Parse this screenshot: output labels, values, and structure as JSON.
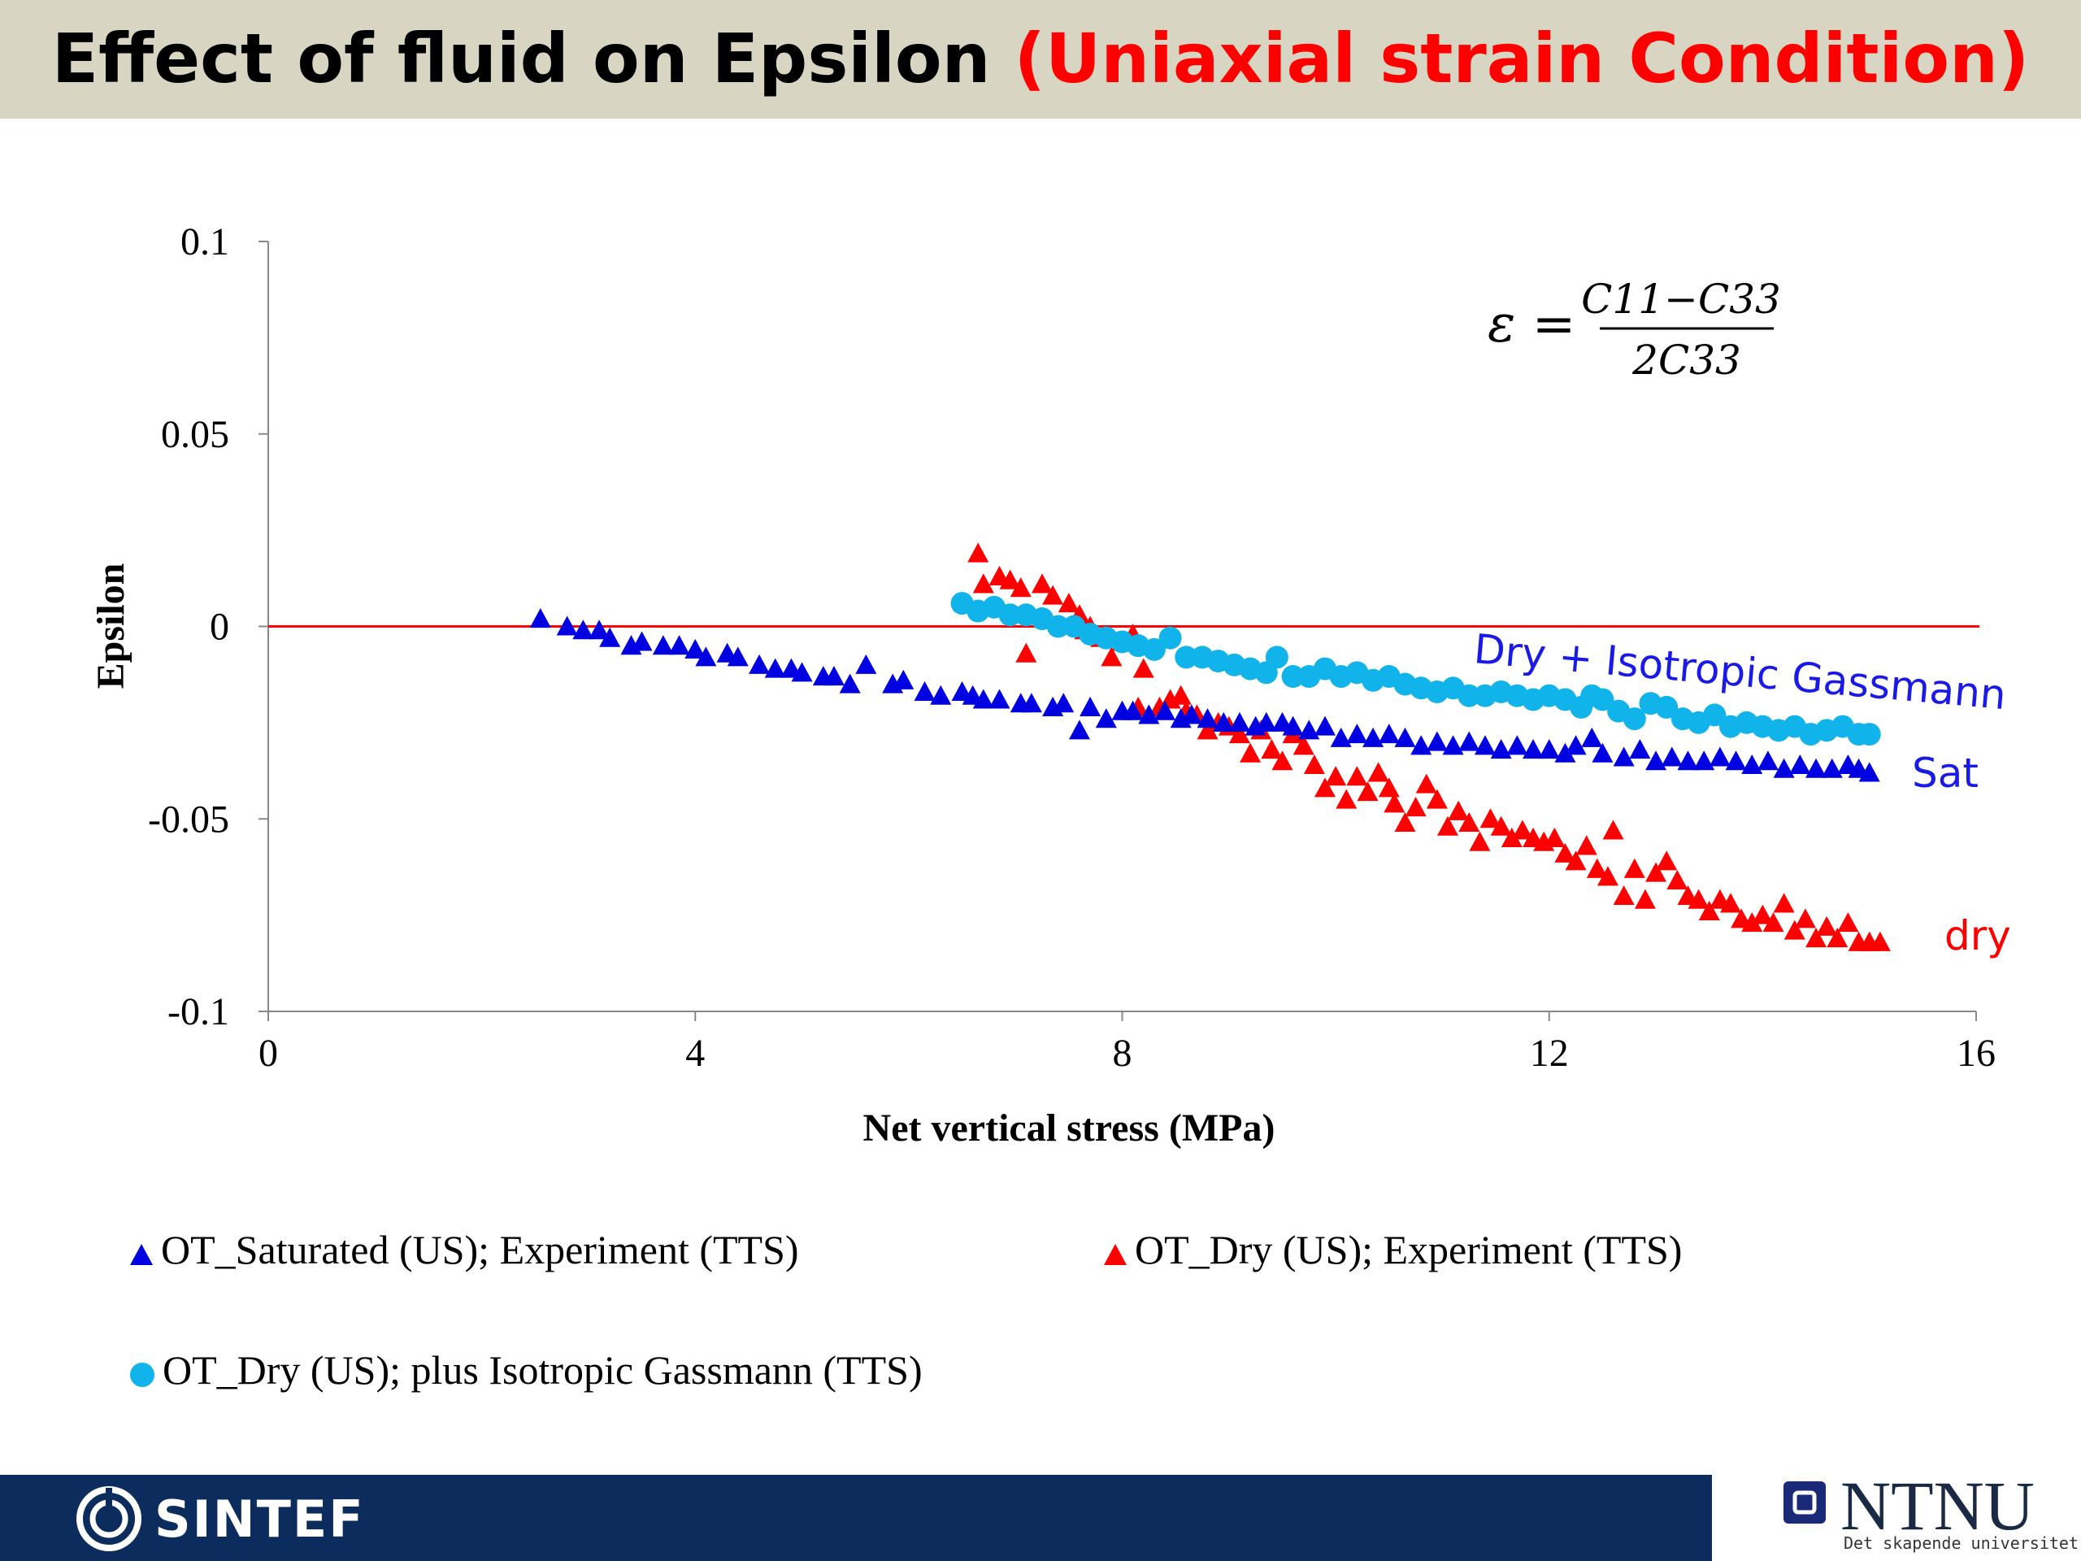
{
  "slide": {
    "title_part1": "Effect of fluid on Epsilon ",
    "title_part2": "(Uniaxial strain Condition)"
  },
  "colors": {
    "saturated": "#0000e0",
    "dry": "#ff0000",
    "gassmann": "#10b4ea",
    "zero_line": "#ff0000",
    "header_bg": "#d8d6c2",
    "footer_bg": "#0d2c5e"
  },
  "formula": {
    "lhs": "ε =",
    "numerator": "C11−C33",
    "denominator": "2C33"
  },
  "annotations": {
    "gassmann_label": "Dry + Isotropic Gassmann",
    "sat_label": "Sat",
    "dry_label": "dry"
  },
  "legend": {
    "item1": "OT_Saturated (US); Experiment (TTS)",
    "item2": "OT_Dry (US); Experiment (TTS)",
    "item3": "OT_Dry (US); plus Isotropic Gassmann (TTS)"
  },
  "footer": {
    "left_logo": "SINTEF",
    "right_logo": "NTNU",
    "tagline": "Det skapende universitet"
  },
  "chart_data": {
    "type": "scatter",
    "xlabel": "Net vertical stress (MPa)",
    "ylabel": "Epsilon",
    "xlim": [
      0,
      16
    ],
    "ylim": [
      -0.1,
      0.1
    ],
    "xticks": [
      0,
      4,
      8,
      12,
      16
    ],
    "yticks": [
      0.1,
      0.05,
      0,
      -0.05,
      -0.1
    ],
    "ytick_labels": [
      "0.1",
      "0.05",
      "0",
      "-0.05",
      "-0.1"
    ],
    "reference_line_y": 0,
    "series": [
      {
        "name": "OT_Saturated (US); Experiment (TTS)",
        "marker": "triangle",
        "color": "#0000e0",
        "points": [
          [
            2.55,
            0.002
          ],
          [
            2.8,
            0.0
          ],
          [
            2.95,
            -0.001
          ],
          [
            3.1,
            -0.001
          ],
          [
            3.2,
            -0.003
          ],
          [
            3.4,
            -0.005
          ],
          [
            3.5,
            -0.004
          ],
          [
            3.7,
            -0.005
          ],
          [
            3.85,
            -0.005
          ],
          [
            4.0,
            -0.006
          ],
          [
            4.1,
            -0.008
          ],
          [
            4.3,
            -0.007
          ],
          [
            4.4,
            -0.008
          ],
          [
            4.6,
            -0.01
          ],
          [
            4.75,
            -0.011
          ],
          [
            4.9,
            -0.011
          ],
          [
            5.0,
            -0.012
          ],
          [
            5.2,
            -0.013
          ],
          [
            5.3,
            -0.013
          ],
          [
            5.45,
            -0.015
          ],
          [
            5.6,
            -0.01
          ],
          [
            5.85,
            -0.015
          ],
          [
            5.95,
            -0.014
          ],
          [
            6.15,
            -0.017
          ],
          [
            6.3,
            -0.018
          ],
          [
            6.5,
            -0.017
          ],
          [
            6.6,
            -0.018
          ],
          [
            6.7,
            -0.019
          ],
          [
            6.85,
            -0.019
          ],
          [
            7.05,
            -0.02
          ],
          [
            7.15,
            -0.02
          ],
          [
            7.35,
            -0.021
          ],
          [
            7.45,
            -0.02
          ],
          [
            7.6,
            -0.027
          ],
          [
            7.7,
            -0.021
          ],
          [
            7.85,
            -0.024
          ],
          [
            8.0,
            -0.022
          ],
          [
            8.1,
            -0.022
          ],
          [
            8.25,
            -0.023
          ],
          [
            8.4,
            -0.022
          ],
          [
            8.55,
            -0.024
          ],
          [
            8.65,
            -0.023
          ],
          [
            8.8,
            -0.024
          ],
          [
            8.95,
            -0.025
          ],
          [
            9.1,
            -0.025
          ],
          [
            9.25,
            -0.026
          ],
          [
            9.35,
            -0.025
          ],
          [
            9.5,
            -0.025
          ],
          [
            9.6,
            -0.026
          ],
          [
            9.75,
            -0.027
          ],
          [
            9.9,
            -0.026
          ],
          [
            10.05,
            -0.029
          ],
          [
            10.2,
            -0.028
          ],
          [
            10.35,
            -0.029
          ],
          [
            10.5,
            -0.028
          ],
          [
            10.65,
            -0.029
          ],
          [
            10.8,
            -0.031
          ],
          [
            10.95,
            -0.03
          ],
          [
            11.1,
            -0.031
          ],
          [
            11.25,
            -0.03
          ],
          [
            11.4,
            -0.031
          ],
          [
            11.55,
            -0.032
          ],
          [
            11.7,
            -0.031
          ],
          [
            11.85,
            -0.032
          ],
          [
            12.0,
            -0.032
          ],
          [
            12.15,
            -0.033
          ],
          [
            12.25,
            -0.031
          ],
          [
            12.4,
            -0.029
          ],
          [
            12.5,
            -0.033
          ],
          [
            12.7,
            -0.034
          ],
          [
            12.85,
            -0.032
          ],
          [
            13.0,
            -0.035
          ],
          [
            13.15,
            -0.034
          ],
          [
            13.3,
            -0.035
          ],
          [
            13.45,
            -0.035
          ],
          [
            13.6,
            -0.034
          ],
          [
            13.75,
            -0.035
          ],
          [
            13.9,
            -0.036
          ],
          [
            14.05,
            -0.035
          ],
          [
            14.2,
            -0.037
          ],
          [
            14.35,
            -0.036
          ],
          [
            14.5,
            -0.037
          ],
          [
            14.65,
            -0.037
          ],
          [
            14.8,
            -0.036
          ],
          [
            14.9,
            -0.037
          ],
          [
            15.0,
            -0.038
          ]
        ]
      },
      {
        "name": "OT_Dry (US); Experiment (TTS)",
        "marker": "triangle",
        "color": "#ff0000",
        "points": [
          [
            6.65,
            0.019
          ],
          [
            6.7,
            0.011
          ],
          [
            6.85,
            0.013
          ],
          [
            6.95,
            0.012
          ],
          [
            7.05,
            0.01
          ],
          [
            7.1,
            -0.007
          ],
          [
            7.25,
            0.011
          ],
          [
            7.35,
            0.008
          ],
          [
            7.5,
            0.006
          ],
          [
            7.6,
            0.003
          ],
          [
            7.65,
            -0.001
          ],
          [
            7.7,
            0.0
          ],
          [
            7.8,
            -0.003
          ],
          [
            7.9,
            -0.008
          ],
          [
            8.0,
            -0.004
          ],
          [
            8.1,
            -0.002
          ],
          [
            8.15,
            -0.021
          ],
          [
            8.2,
            -0.011
          ],
          [
            8.35,
            -0.021
          ],
          [
            8.45,
            -0.019
          ],
          [
            8.55,
            -0.018
          ],
          [
            8.6,
            -0.022
          ],
          [
            8.7,
            -0.023
          ],
          [
            8.8,
            -0.027
          ],
          [
            8.9,
            -0.025
          ],
          [
            9.0,
            -0.026
          ],
          [
            9.1,
            -0.028
          ],
          [
            9.2,
            -0.033
          ],
          [
            9.3,
            -0.027
          ],
          [
            9.4,
            -0.032
          ],
          [
            9.5,
            -0.035
          ],
          [
            9.6,
            -0.028
          ],
          [
            9.7,
            -0.031
          ],
          [
            9.8,
            -0.036
          ],
          [
            9.9,
            -0.042
          ],
          [
            10.0,
            -0.039
          ],
          [
            10.1,
            -0.045
          ],
          [
            10.2,
            -0.039
          ],
          [
            10.3,
            -0.043
          ],
          [
            10.4,
            -0.038
          ],
          [
            10.5,
            -0.042
          ],
          [
            10.55,
            -0.046
          ],
          [
            10.65,
            -0.051
          ],
          [
            10.75,
            -0.047
          ],
          [
            10.85,
            -0.041
          ],
          [
            10.95,
            -0.045
          ],
          [
            11.05,
            -0.052
          ],
          [
            11.15,
            -0.048
          ],
          [
            11.25,
            -0.051
          ],
          [
            11.35,
            -0.056
          ],
          [
            11.45,
            -0.05
          ],
          [
            11.55,
            -0.052
          ],
          [
            11.65,
            -0.055
          ],
          [
            11.75,
            -0.053
          ],
          [
            11.85,
            -0.055
          ],
          [
            11.95,
            -0.056
          ],
          [
            12.05,
            -0.055
          ],
          [
            12.15,
            -0.059
          ],
          [
            12.25,
            -0.061
          ],
          [
            12.35,
            -0.057
          ],
          [
            12.45,
            -0.063
          ],
          [
            12.55,
            -0.065
          ],
          [
            12.6,
            -0.053
          ],
          [
            12.7,
            -0.07
          ],
          [
            12.8,
            -0.063
          ],
          [
            12.9,
            -0.071
          ],
          [
            13.0,
            -0.064
          ],
          [
            13.1,
            -0.061
          ],
          [
            13.2,
            -0.066
          ],
          [
            13.3,
            -0.07
          ],
          [
            13.4,
            -0.071
          ],
          [
            13.5,
            -0.074
          ],
          [
            13.6,
            -0.071
          ],
          [
            13.7,
            -0.072
          ],
          [
            13.8,
            -0.076
          ],
          [
            13.9,
            -0.077
          ],
          [
            14.0,
            -0.075
          ],
          [
            14.1,
            -0.077
          ],
          [
            14.2,
            -0.072
          ],
          [
            14.3,
            -0.079
          ],
          [
            14.4,
            -0.076
          ],
          [
            14.5,
            -0.081
          ],
          [
            14.6,
            -0.078
          ],
          [
            14.7,
            -0.081
          ],
          [
            14.8,
            -0.077
          ],
          [
            14.9,
            -0.082
          ],
          [
            15.0,
            -0.082
          ],
          [
            15.1,
            -0.082
          ]
        ]
      },
      {
        "name": "OT_Dry (US); plus Isotropic Gassmann (TTS)",
        "marker": "circle",
        "color": "#10b4ea",
        "points": [
          [
            6.5,
            0.006
          ],
          [
            6.65,
            0.004
          ],
          [
            6.8,
            0.005
          ],
          [
            6.95,
            0.003
          ],
          [
            7.1,
            0.003
          ],
          [
            7.25,
            0.002
          ],
          [
            7.4,
            0.0
          ],
          [
            7.55,
            0.0
          ],
          [
            7.7,
            -0.002
          ],
          [
            7.85,
            -0.003
          ],
          [
            8.0,
            -0.004
          ],
          [
            8.15,
            -0.005
          ],
          [
            8.3,
            -0.006
          ],
          [
            8.45,
            -0.003
          ],
          [
            8.6,
            -0.008
          ],
          [
            8.75,
            -0.008
          ],
          [
            8.9,
            -0.009
          ],
          [
            9.05,
            -0.01
          ],
          [
            9.2,
            -0.011
          ],
          [
            9.35,
            -0.012
          ],
          [
            9.45,
            -0.008
          ],
          [
            9.6,
            -0.013
          ],
          [
            9.75,
            -0.013
          ],
          [
            9.9,
            -0.011
          ],
          [
            10.05,
            -0.013
          ],
          [
            10.2,
            -0.012
          ],
          [
            10.35,
            -0.014
          ],
          [
            10.5,
            -0.013
          ],
          [
            10.65,
            -0.015
          ],
          [
            10.8,
            -0.016
          ],
          [
            10.95,
            -0.017
          ],
          [
            11.1,
            -0.016
          ],
          [
            11.25,
            -0.018
          ],
          [
            11.4,
            -0.018
          ],
          [
            11.55,
            -0.017
          ],
          [
            11.7,
            -0.018
          ],
          [
            11.85,
            -0.019
          ],
          [
            12.0,
            -0.018
          ],
          [
            12.15,
            -0.019
          ],
          [
            12.3,
            -0.021
          ],
          [
            12.4,
            -0.018
          ],
          [
            12.5,
            -0.019
          ],
          [
            12.65,
            -0.022
          ],
          [
            12.8,
            -0.024
          ],
          [
            12.95,
            -0.02
          ],
          [
            13.1,
            -0.021
          ],
          [
            13.25,
            -0.024
          ],
          [
            13.4,
            -0.025
          ],
          [
            13.55,
            -0.023
          ],
          [
            13.7,
            -0.026
          ],
          [
            13.85,
            -0.025
          ],
          [
            14.0,
            -0.026
          ],
          [
            14.15,
            -0.027
          ],
          [
            14.3,
            -0.026
          ],
          [
            14.45,
            -0.028
          ],
          [
            14.6,
            -0.027
          ],
          [
            14.75,
            -0.026
          ],
          [
            14.9,
            -0.028
          ],
          [
            15.0,
            -0.028
          ]
        ]
      }
    ]
  }
}
